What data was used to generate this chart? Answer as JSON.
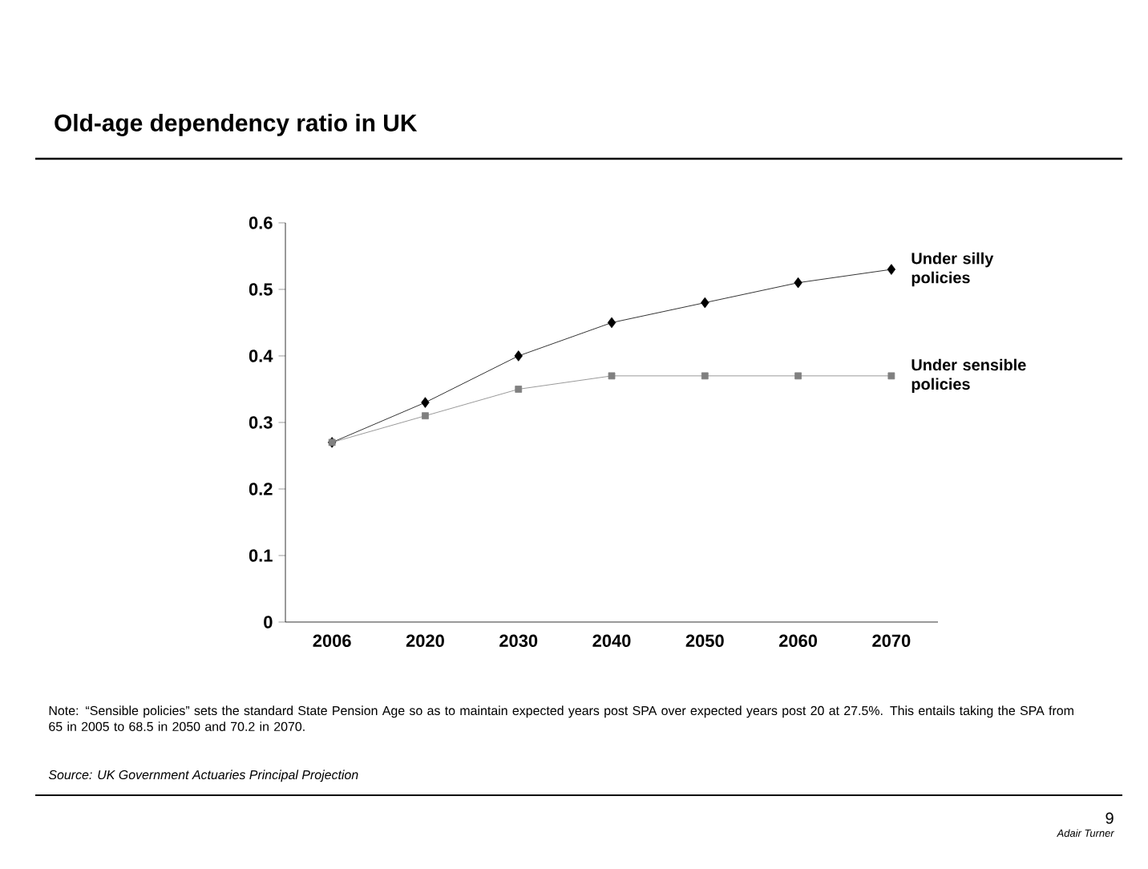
{
  "chart_data": {
    "type": "line",
    "title": "Old-age dependency ratio in UK",
    "categories": [
      "2006",
      "2020",
      "2030",
      "2040",
      "2050",
      "2060",
      "2070"
    ],
    "series": [
      {
        "name": "Under silly policies",
        "color": "#000000",
        "marker": "diamond",
        "values": [
          0.27,
          0.33,
          0.4,
          0.45,
          0.48,
          0.51,
          0.53
        ]
      },
      {
        "name": "Under sensible policies",
        "color": "#808080",
        "marker": "square",
        "values": [
          0.27,
          0.31,
          0.35,
          0.37,
          0.37,
          0.37,
          0.37
        ]
      }
    ],
    "ylim": [
      0,
      0.6
    ],
    "yticks": [
      0,
      0.1,
      0.2,
      0.3,
      0.4,
      0.5,
      0.6
    ],
    "grid": false,
    "legend": false,
    "line_style": "solid",
    "annotations": [
      "Note: “Sensible policies” sets the standard State Pension Age so as to maintain expected years post SPA over expected years post 20 at 27.5%. This entails taking the SPA from 65 in 2005 to 68.5 in 2050 and 70.2 in 2070.",
      "Source: UK Government Actuaries Principal Projection",
      "9",
      "Adair Turner"
    ]
  }
}
